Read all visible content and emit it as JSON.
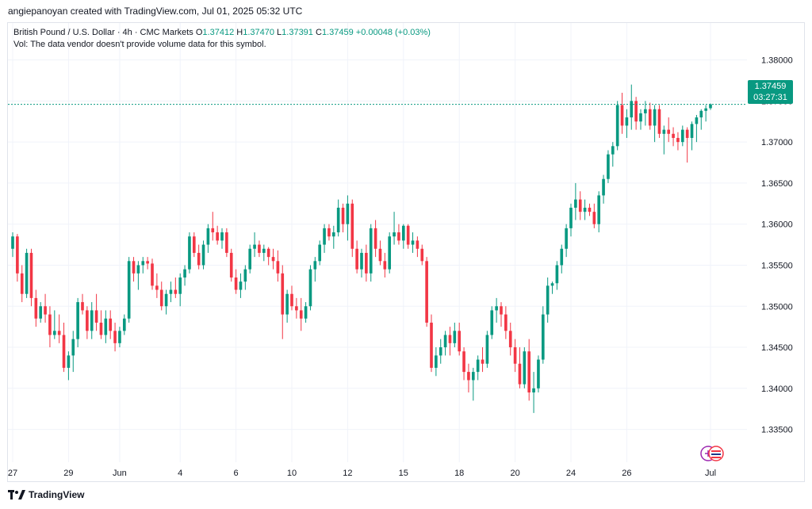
{
  "credit": "angiepanoyan created with TradingView.com, Jul 01, 2025 05:32 UTC",
  "legend": {
    "symbol": "British Pound / U.S. Dollar · 4h · CMC Markets",
    "o_label": "O",
    "o_value": "1.37412",
    "h_label": "H",
    "h_value": "1.37470",
    "l_label": "L",
    "l_value": "1.37391",
    "c_label": "C",
    "c_value": "1.37459",
    "change": "+0.00048 (+0.03%)",
    "volume_note": "Vol: The data vendor doesn't provide volume data for this symbol."
  },
  "price_tag": {
    "price": "1.37459",
    "countdown": "03:27:31"
  },
  "footer": {
    "brand": "TradingView"
  },
  "colors": {
    "up": "#089981",
    "down": "#f23645",
    "grid": "#f0f3fa",
    "axis_text": "#131722",
    "last_line": "#089981"
  },
  "icons": [
    "tradingview-logo-icon",
    "economic-events-icon"
  ],
  "chart_data": {
    "type": "candlestick",
    "title": "British Pound / U.S. Dollar · 4h · CMC Markets",
    "ylim": [
      1.331,
      1.3845
    ],
    "y_ticks": [
      "1.33500",
      "1.34000",
      "1.34500",
      "1.35000",
      "1.35500",
      "1.36000",
      "1.36500",
      "1.37000",
      "1.37500",
      "1.38000"
    ],
    "x_ticks": [
      {
        "label": "27",
        "index": 0
      },
      {
        "label": "29",
        "index": 12
      },
      {
        "label": "Jun",
        "index": 23
      },
      {
        "label": "4",
        "index": 36
      },
      {
        "label": "6",
        "index": 48
      },
      {
        "label": "10",
        "index": 60
      },
      {
        "label": "12",
        "index": 72
      },
      {
        "label": "15",
        "index": 84
      },
      {
        "label": "18",
        "index": 96
      },
      {
        "label": "20",
        "index": 108
      },
      {
        "label": "24",
        "index": 120
      },
      {
        "label": "26",
        "index": 132
      },
      {
        "label": "Jul",
        "index": 150
      }
    ],
    "last_price": 1.37459,
    "candles": [
      [
        1.357,
        1.359,
        1.356,
        1.3585
      ],
      [
        1.3585,
        1.3588,
        1.353,
        1.354
      ],
      [
        1.354,
        1.355,
        1.3505,
        1.3515
      ],
      [
        1.3515,
        1.357,
        1.351,
        1.3565
      ],
      [
        1.3565,
        1.357,
        1.35,
        1.351
      ],
      [
        1.351,
        1.352,
        1.3475,
        1.3485
      ],
      [
        1.3485,
        1.3505,
        1.348,
        1.35
      ],
      [
        1.35,
        1.3515,
        1.348,
        1.349
      ],
      [
        1.349,
        1.35,
        1.345,
        1.3465
      ],
      [
        1.3465,
        1.3495,
        1.346,
        1.347
      ],
      [
        1.347,
        1.349,
        1.3455,
        1.3465
      ],
      [
        1.3465,
        1.348,
        1.342,
        1.3425
      ],
      [
        1.3425,
        1.3445,
        1.341,
        1.344
      ],
      [
        1.344,
        1.347,
        1.342,
        1.346
      ],
      [
        1.346,
        1.351,
        1.345,
        1.3505
      ],
      [
        1.3505,
        1.3515,
        1.349,
        1.3495
      ],
      [
        1.3495,
        1.35,
        1.346,
        1.347
      ],
      [
        1.347,
        1.3505,
        1.346,
        1.3495
      ],
      [
        1.3495,
        1.3515,
        1.347,
        1.348
      ],
      [
        1.348,
        1.3495,
        1.346,
        1.3465
      ],
      [
        1.3465,
        1.3495,
        1.3455,
        1.3485
      ],
      [
        1.3485,
        1.3495,
        1.346,
        1.347
      ],
      [
        1.347,
        1.348,
        1.3445,
        1.3455
      ],
      [
        1.3455,
        1.3475,
        1.345,
        1.347
      ],
      [
        1.347,
        1.349,
        1.3465,
        1.3485
      ],
      [
        1.3485,
        1.356,
        1.348,
        1.3555
      ],
      [
        1.3555,
        1.356,
        1.353,
        1.354
      ],
      [
        1.354,
        1.3555,
        1.352,
        1.355
      ],
      [
        1.355,
        1.356,
        1.354,
        1.3555
      ],
      [
        1.3555,
        1.356,
        1.3545,
        1.3552
      ],
      [
        1.3552,
        1.3558,
        1.352,
        1.3525
      ],
      [
        1.3525,
        1.354,
        1.351,
        1.352
      ],
      [
        1.352,
        1.353,
        1.3495,
        1.35
      ],
      [
        1.35,
        1.352,
        1.349,
        1.3515
      ],
      [
        1.3515,
        1.353,
        1.3505,
        1.352
      ],
      [
        1.352,
        1.3535,
        1.351,
        1.3515
      ],
      [
        1.3515,
        1.354,
        1.35,
        1.3535
      ],
      [
        1.3535,
        1.355,
        1.3525,
        1.3545
      ],
      [
        1.3545,
        1.359,
        1.354,
        1.3585
      ],
      [
        1.3585,
        1.359,
        1.356,
        1.3565
      ],
      [
        1.3565,
        1.3575,
        1.3545,
        1.355
      ],
      [
        1.355,
        1.358,
        1.3545,
        1.3575
      ],
      [
        1.3575,
        1.36,
        1.3565,
        1.3595
      ],
      [
        1.3595,
        1.3615,
        1.358,
        1.359
      ],
      [
        1.359,
        1.3598,
        1.3575,
        1.358
      ],
      [
        1.358,
        1.3595,
        1.357,
        1.359
      ],
      [
        1.359,
        1.3595,
        1.356,
        1.3565
      ],
      [
        1.3565,
        1.357,
        1.353,
        1.3535
      ],
      [
        1.3535,
        1.3545,
        1.3515,
        1.352
      ],
      [
        1.352,
        1.354,
        1.351,
        1.353
      ],
      [
        1.353,
        1.355,
        1.352,
        1.3545
      ],
      [
        1.3545,
        1.3575,
        1.354,
        1.357
      ],
      [
        1.357,
        1.359,
        1.356,
        1.3575
      ],
      [
        1.3575,
        1.358,
        1.356,
        1.3565
      ],
      [
        1.3565,
        1.3575,
        1.3555,
        1.357
      ],
      [
        1.357,
        1.3572,
        1.355,
        1.356
      ],
      [
        1.356,
        1.357,
        1.3545,
        1.3555
      ],
      [
        1.3555,
        1.3568,
        1.353,
        1.354
      ],
      [
        1.354,
        1.355,
        1.346,
        1.349
      ],
      [
        1.349,
        1.352,
        1.348,
        1.3515
      ],
      [
        1.3515,
        1.3525,
        1.3495,
        1.35
      ],
      [
        1.35,
        1.351,
        1.3485,
        1.3495
      ],
      [
        1.3495,
        1.351,
        1.347,
        1.3485
      ],
      [
        1.3485,
        1.3505,
        1.348,
        1.35
      ],
      [
        1.35,
        1.355,
        1.3495,
        1.3545
      ],
      [
        1.3545,
        1.356,
        1.353,
        1.3555
      ],
      [
        1.3555,
        1.358,
        1.355,
        1.3575
      ],
      [
        1.3575,
        1.36,
        1.3565,
        1.3595
      ],
      [
        1.3595,
        1.36,
        1.358,
        1.3585
      ],
      [
        1.3585,
        1.3598,
        1.357,
        1.359
      ],
      [
        1.359,
        1.363,
        1.3585,
        1.362
      ],
      [
        1.362,
        1.3625,
        1.359,
        1.36
      ],
      [
        1.36,
        1.3635,
        1.358,
        1.3625
      ],
      [
        1.3625,
        1.363,
        1.356,
        1.357
      ],
      [
        1.357,
        1.358,
        1.354,
        1.3545
      ],
      [
        1.3545,
        1.357,
        1.3535,
        1.3565
      ],
      [
        1.3565,
        1.3575,
        1.353,
        1.354
      ],
      [
        1.354,
        1.36,
        1.353,
        1.3595
      ],
      [
        1.3595,
        1.3605,
        1.356,
        1.357
      ],
      [
        1.357,
        1.358,
        1.355,
        1.3555
      ],
      [
        1.3555,
        1.3565,
        1.3535,
        1.3545
      ],
      [
        1.3545,
        1.359,
        1.354,
        1.3585
      ],
      [
        1.3585,
        1.3615,
        1.3575,
        1.359
      ],
      [
        1.359,
        1.36,
        1.3575,
        1.358
      ],
      [
        1.358,
        1.36,
        1.357,
        1.3598
      ],
      [
        1.3598,
        1.36,
        1.357,
        1.3575
      ],
      [
        1.3575,
        1.359,
        1.3565,
        1.358
      ],
      [
        1.358,
        1.3585,
        1.356,
        1.357
      ],
      [
        1.357,
        1.3575,
        1.355,
        1.3555
      ],
      [
        1.3555,
        1.356,
        1.3475,
        1.348
      ],
      [
        1.348,
        1.349,
        1.342,
        1.3425
      ],
      [
        1.3425,
        1.345,
        1.3415,
        1.344
      ],
      [
        1.344,
        1.346,
        1.343,
        1.345
      ],
      [
        1.345,
        1.347,
        1.344,
        1.3465
      ],
      [
        1.3465,
        1.3475,
        1.344,
        1.3455
      ],
      [
        1.3455,
        1.348,
        1.345,
        1.347
      ],
      [
        1.347,
        1.348,
        1.344,
        1.3445
      ],
      [
        1.3445,
        1.345,
        1.341,
        1.342
      ],
      [
        1.342,
        1.343,
        1.3395,
        1.341
      ],
      [
        1.341,
        1.3425,
        1.3385,
        1.342
      ],
      [
        1.342,
        1.344,
        1.341,
        1.3435
      ],
      [
        1.3435,
        1.345,
        1.342,
        1.343
      ],
      [
        1.343,
        1.347,
        1.3425,
        1.3465
      ],
      [
        1.3465,
        1.35,
        1.346,
        1.3495
      ],
      [
        1.3495,
        1.351,
        1.348,
        1.35
      ],
      [
        1.35,
        1.3505,
        1.3475,
        1.349
      ],
      [
        1.349,
        1.35,
        1.346,
        1.347
      ],
      [
        1.347,
        1.348,
        1.344,
        1.345
      ],
      [
        1.345,
        1.346,
        1.342,
        1.343
      ],
      [
        1.343,
        1.345,
        1.34,
        1.3405
      ],
      [
        1.3405,
        1.345,
        1.34,
        1.3445
      ],
      [
        1.3445,
        1.346,
        1.3385,
        1.3395
      ],
      [
        1.3395,
        1.342,
        1.337,
        1.34
      ],
      [
        1.34,
        1.344,
        1.3395,
        1.3435
      ],
      [
        1.3435,
        1.35,
        1.343,
        1.349
      ],
      [
        1.349,
        1.3535,
        1.348,
        1.3525
      ],
      [
        1.3525,
        1.353,
        1.3515,
        1.3528
      ],
      [
        1.3528,
        1.3555,
        1.352,
        1.355
      ],
      [
        1.355,
        1.3575,
        1.354,
        1.357
      ],
      [
        1.357,
        1.36,
        1.356,
        1.3595
      ],
      [
        1.3595,
        1.3625,
        1.3585,
        1.362
      ],
      [
        1.362,
        1.365,
        1.3605,
        1.363
      ],
      [
        1.363,
        1.364,
        1.3605,
        1.3615
      ],
      [
        1.3615,
        1.363,
        1.3605,
        1.362
      ],
      [
        1.362,
        1.3625,
        1.361,
        1.3615
      ],
      [
        1.3615,
        1.3625,
        1.3595,
        1.36
      ],
      [
        1.36,
        1.364,
        1.359,
        1.3635
      ],
      [
        1.3635,
        1.366,
        1.3625,
        1.3655
      ],
      [
        1.3655,
        1.369,
        1.365,
        1.3685
      ],
      [
        1.3685,
        1.37,
        1.367,
        1.3695
      ],
      [
        1.3695,
        1.375,
        1.369,
        1.3745
      ],
      [
        1.3745,
        1.376,
        1.371,
        1.372
      ],
      [
        1.372,
        1.374,
        1.3705,
        1.373
      ],
      [
        1.373,
        1.377,
        1.3715,
        1.375
      ],
      [
        1.375,
        1.3755,
        1.3715,
        1.3725
      ],
      [
        1.3725,
        1.374,
        1.3715,
        1.3735
      ],
      [
        1.3735,
        1.375,
        1.372,
        1.374
      ],
      [
        1.374,
        1.3748,
        1.3715,
        1.372
      ],
      [
        1.372,
        1.3745,
        1.37,
        1.374
      ],
      [
        1.374,
        1.3745,
        1.3705,
        1.371
      ],
      [
        1.371,
        1.372,
        1.3685,
        1.3715
      ],
      [
        1.3715,
        1.373,
        1.37,
        1.371
      ],
      [
        1.371,
        1.3718,
        1.3695,
        1.3705
      ],
      [
        1.3705,
        1.3712,
        1.369,
        1.37
      ],
      [
        1.37,
        1.372,
        1.3695,
        1.3715
      ],
      [
        1.3715,
        1.3718,
        1.3675,
        1.3705
      ],
      [
        1.3705,
        1.3725,
        1.369,
        1.3722
      ],
      [
        1.3722,
        1.3733,
        1.37,
        1.373
      ],
      [
        1.373,
        1.374,
        1.3715,
        1.3738
      ],
      [
        1.3738,
        1.3745,
        1.3725,
        1.3741
      ],
      [
        1.37412,
        1.3747,
        1.37391,
        1.37459
      ]
    ]
  }
}
